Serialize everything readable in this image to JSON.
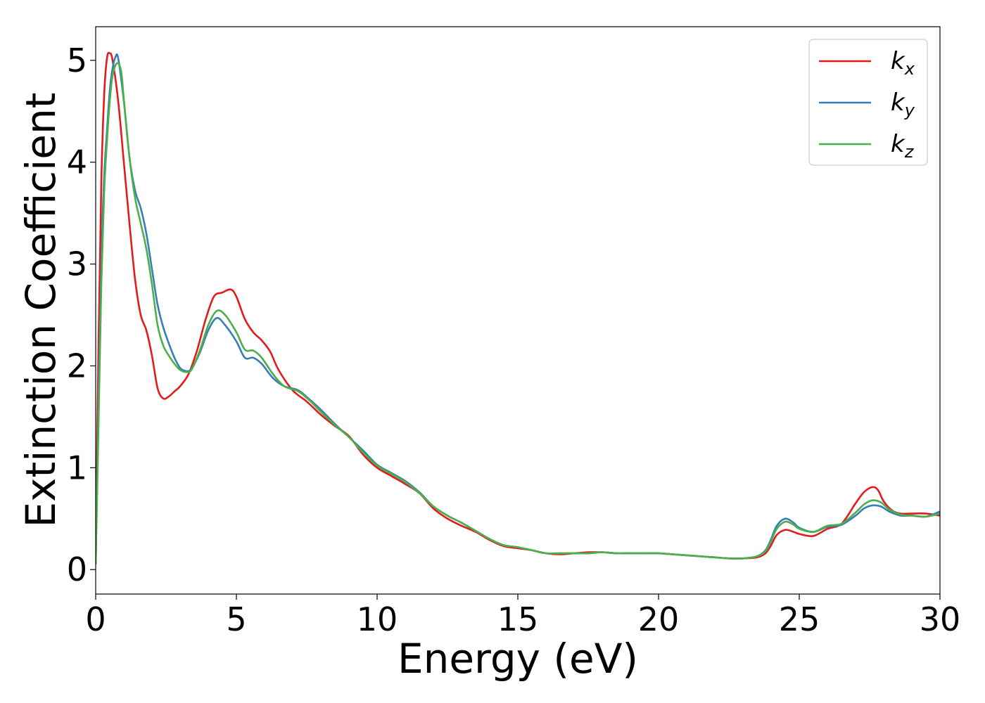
{
  "chart_data": {
    "type": "line",
    "xlabel": "Energy (eV)",
    "ylabel": "Extinction Coefficient",
    "xlim": [
      0,
      30
    ],
    "ylim": [
      -0.24,
      5.33
    ],
    "grid": false,
    "legend_position": "top-right",
    "x_ticks": [
      "0",
      "5",
      "10",
      "15",
      "20",
      "25",
      "30"
    ],
    "y_ticks": [
      "0",
      "1",
      "2",
      "3",
      "4",
      "5"
    ],
    "series": [
      {
        "name": "k",
        "subscript": "x",
        "color": "#e41a1c",
        "points": [
          [
            0,
            0.05
          ],
          [
            0.1,
            2.2
          ],
          [
            0.2,
            3.8
          ],
          [
            0.3,
            4.65
          ],
          [
            0.4,
            5.02
          ],
          [
            0.5,
            5.07
          ],
          [
            0.6,
            5.0
          ],
          [
            0.8,
            4.6
          ],
          [
            1.0,
            4.0
          ],
          [
            1.2,
            3.4
          ],
          [
            1.4,
            2.85
          ],
          [
            1.6,
            2.5
          ],
          [
            1.8,
            2.35
          ],
          [
            2.0,
            2.1
          ],
          [
            2.2,
            1.78
          ],
          [
            2.4,
            1.68
          ],
          [
            2.6,
            1.7
          ],
          [
            2.8,
            1.75
          ],
          [
            3.0,
            1.8
          ],
          [
            3.3,
            1.92
          ],
          [
            3.6,
            2.15
          ],
          [
            3.9,
            2.45
          ],
          [
            4.2,
            2.68
          ],
          [
            4.5,
            2.72
          ],
          [
            4.8,
            2.75
          ],
          [
            5.0,
            2.68
          ],
          [
            5.3,
            2.46
          ],
          [
            5.6,
            2.33
          ],
          [
            5.9,
            2.25
          ],
          [
            6.2,
            2.14
          ],
          [
            6.5,
            1.96
          ],
          [
            7.0,
            1.76
          ],
          [
            7.5,
            1.65
          ],
          [
            8.0,
            1.52
          ],
          [
            8.5,
            1.41
          ],
          [
            9.0,
            1.31
          ],
          [
            9.5,
            1.13
          ],
          [
            10.0,
            1.0
          ],
          [
            10.5,
            0.92
          ],
          [
            11.0,
            0.84
          ],
          [
            11.5,
            0.75
          ],
          [
            12.0,
            0.6
          ],
          [
            12.5,
            0.5
          ],
          [
            13.0,
            0.43
          ],
          [
            13.5,
            0.37
          ],
          [
            14.0,
            0.29
          ],
          [
            14.5,
            0.23
          ],
          [
            15.0,
            0.21
          ],
          [
            15.5,
            0.19
          ],
          [
            16.0,
            0.16
          ],
          [
            16.5,
            0.15
          ],
          [
            17.0,
            0.16
          ],
          [
            17.5,
            0.17
          ],
          [
            18.0,
            0.17
          ],
          [
            18.5,
            0.16
          ],
          [
            19.0,
            0.16
          ],
          [
            19.5,
            0.16
          ],
          [
            20.0,
            0.16
          ],
          [
            20.5,
            0.15
          ],
          [
            21.0,
            0.14
          ],
          [
            21.5,
            0.13
          ],
          [
            22.0,
            0.12
          ],
          [
            22.5,
            0.11
          ],
          [
            23.0,
            0.11
          ],
          [
            23.5,
            0.12
          ],
          [
            23.8,
            0.16
          ],
          [
            24.0,
            0.24
          ],
          [
            24.2,
            0.34
          ],
          [
            24.5,
            0.39
          ],
          [
            24.8,
            0.37
          ],
          [
            25.0,
            0.35
          ],
          [
            25.5,
            0.33
          ],
          [
            26.0,
            0.4
          ],
          [
            26.5,
            0.45
          ],
          [
            27.0,
            0.65
          ],
          [
            27.3,
            0.76
          ],
          [
            27.6,
            0.81
          ],
          [
            27.8,
            0.78
          ],
          [
            28.0,
            0.67
          ],
          [
            28.3,
            0.58
          ],
          [
            28.6,
            0.55
          ],
          [
            29.0,
            0.55
          ],
          [
            29.5,
            0.55
          ],
          [
            30.0,
            0.53
          ]
        ]
      },
      {
        "name": "k",
        "subscript": "y",
        "color": "#377eb8",
        "points": [
          [
            0,
            0.05
          ],
          [
            0.1,
            1.6
          ],
          [
            0.2,
            3.0
          ],
          [
            0.3,
            3.85
          ],
          [
            0.4,
            4.3
          ],
          [
            0.5,
            4.7
          ],
          [
            0.6,
            4.92
          ],
          [
            0.7,
            5.03
          ],
          [
            0.8,
            5.02
          ],
          [
            1.0,
            4.6
          ],
          [
            1.2,
            4.05
          ],
          [
            1.4,
            3.72
          ],
          [
            1.6,
            3.55
          ],
          [
            1.8,
            3.3
          ],
          [
            2.0,
            2.95
          ],
          [
            2.2,
            2.6
          ],
          [
            2.4,
            2.38
          ],
          [
            2.6,
            2.22
          ],
          [
            2.8,
            2.08
          ],
          [
            3.0,
            1.98
          ],
          [
            3.2,
            1.95
          ],
          [
            3.4,
            1.97
          ],
          [
            3.7,
            2.13
          ],
          [
            4.0,
            2.35
          ],
          [
            4.3,
            2.47
          ],
          [
            4.6,
            2.4
          ],
          [
            5.0,
            2.24
          ],
          [
            5.3,
            2.08
          ],
          [
            5.6,
            2.08
          ],
          [
            5.9,
            2.02
          ],
          [
            6.3,
            1.88
          ],
          [
            6.7,
            1.8
          ],
          [
            7.2,
            1.76
          ],
          [
            7.6,
            1.67
          ],
          [
            8.0,
            1.57
          ],
          [
            8.5,
            1.43
          ],
          [
            9.0,
            1.3
          ],
          [
            9.5,
            1.17
          ],
          [
            10.0,
            1.03
          ],
          [
            10.5,
            0.95
          ],
          [
            11.0,
            0.87
          ],
          [
            11.5,
            0.76
          ],
          [
            12.0,
            0.62
          ],
          [
            12.5,
            0.53
          ],
          [
            13.0,
            0.46
          ],
          [
            13.5,
            0.38
          ],
          [
            14.0,
            0.3
          ],
          [
            14.5,
            0.24
          ],
          [
            15.0,
            0.22
          ],
          [
            15.5,
            0.19
          ],
          [
            16.0,
            0.16
          ],
          [
            16.5,
            0.16
          ],
          [
            17.0,
            0.16
          ],
          [
            17.5,
            0.16
          ],
          [
            18.0,
            0.17
          ],
          [
            18.5,
            0.16
          ],
          [
            19.0,
            0.16
          ],
          [
            19.5,
            0.16
          ],
          [
            20.0,
            0.16
          ],
          [
            20.5,
            0.15
          ],
          [
            21.0,
            0.14
          ],
          [
            21.5,
            0.13
          ],
          [
            22.0,
            0.12
          ],
          [
            22.5,
            0.11
          ],
          [
            23.0,
            0.11
          ],
          [
            23.5,
            0.13
          ],
          [
            23.8,
            0.19
          ],
          [
            24.0,
            0.3
          ],
          [
            24.2,
            0.43
          ],
          [
            24.5,
            0.5
          ],
          [
            24.8,
            0.46
          ],
          [
            25.0,
            0.41
          ],
          [
            25.5,
            0.37
          ],
          [
            26.0,
            0.42
          ],
          [
            26.5,
            0.44
          ],
          [
            27.0,
            0.53
          ],
          [
            27.3,
            0.6
          ],
          [
            27.6,
            0.63
          ],
          [
            27.9,
            0.62
          ],
          [
            28.2,
            0.57
          ],
          [
            28.6,
            0.53
          ],
          [
            29.0,
            0.53
          ],
          [
            29.5,
            0.52
          ],
          [
            30.0,
            0.57
          ]
        ]
      },
      {
        "name": "k",
        "subscript": "z",
        "color": "#4daf4a",
        "points": [
          [
            0,
            0.05
          ],
          [
            0.1,
            1.4
          ],
          [
            0.2,
            2.8
          ],
          [
            0.3,
            3.7
          ],
          [
            0.4,
            4.2
          ],
          [
            0.5,
            4.6
          ],
          [
            0.6,
            4.85
          ],
          [
            0.75,
            4.97
          ],
          [
            0.9,
            4.9
          ],
          [
            1.0,
            4.62
          ],
          [
            1.2,
            4.05
          ],
          [
            1.4,
            3.65
          ],
          [
            1.6,
            3.4
          ],
          [
            1.8,
            3.15
          ],
          [
            2.0,
            2.8
          ],
          [
            2.2,
            2.4
          ],
          [
            2.4,
            2.2
          ],
          [
            2.6,
            2.1
          ],
          [
            2.8,
            2.02
          ],
          [
            3.0,
            1.96
          ],
          [
            3.2,
            1.94
          ],
          [
            3.4,
            1.96
          ],
          [
            3.7,
            2.15
          ],
          [
            4.0,
            2.4
          ],
          [
            4.3,
            2.54
          ],
          [
            4.6,
            2.5
          ],
          [
            5.0,
            2.33
          ],
          [
            5.3,
            2.16
          ],
          [
            5.6,
            2.15
          ],
          [
            5.9,
            2.08
          ],
          [
            6.3,
            1.92
          ],
          [
            6.7,
            1.8
          ],
          [
            7.2,
            1.75
          ],
          [
            7.6,
            1.66
          ],
          [
            8.0,
            1.55
          ],
          [
            8.5,
            1.42
          ],
          [
            9.0,
            1.3
          ],
          [
            9.5,
            1.15
          ],
          [
            10.0,
            1.02
          ],
          [
            10.5,
            0.94
          ],
          [
            11.0,
            0.86
          ],
          [
            11.5,
            0.75
          ],
          [
            12.0,
            0.62
          ],
          [
            12.5,
            0.53
          ],
          [
            13.0,
            0.46
          ],
          [
            13.5,
            0.38
          ],
          [
            14.0,
            0.3
          ],
          [
            14.5,
            0.24
          ],
          [
            15.0,
            0.22
          ],
          [
            15.5,
            0.19
          ],
          [
            16.0,
            0.16
          ],
          [
            16.5,
            0.16
          ],
          [
            17.0,
            0.16
          ],
          [
            17.5,
            0.16
          ],
          [
            18.0,
            0.17
          ],
          [
            18.5,
            0.16
          ],
          [
            19.0,
            0.16
          ],
          [
            19.5,
            0.16
          ],
          [
            20.0,
            0.16
          ],
          [
            20.5,
            0.15
          ],
          [
            21.0,
            0.14
          ],
          [
            21.5,
            0.13
          ],
          [
            22.0,
            0.12
          ],
          [
            22.5,
            0.11
          ],
          [
            23.0,
            0.11
          ],
          [
            23.5,
            0.13
          ],
          [
            23.8,
            0.18
          ],
          [
            24.0,
            0.28
          ],
          [
            24.2,
            0.4
          ],
          [
            24.5,
            0.47
          ],
          [
            24.8,
            0.44
          ],
          [
            25.0,
            0.4
          ],
          [
            25.5,
            0.37
          ],
          [
            26.0,
            0.43
          ],
          [
            26.5,
            0.45
          ],
          [
            27.0,
            0.56
          ],
          [
            27.3,
            0.64
          ],
          [
            27.6,
            0.68
          ],
          [
            27.9,
            0.66
          ],
          [
            28.2,
            0.59
          ],
          [
            28.6,
            0.54
          ],
          [
            29.0,
            0.53
          ],
          [
            29.5,
            0.52
          ],
          [
            30.0,
            0.55
          ]
        ]
      }
    ]
  }
}
